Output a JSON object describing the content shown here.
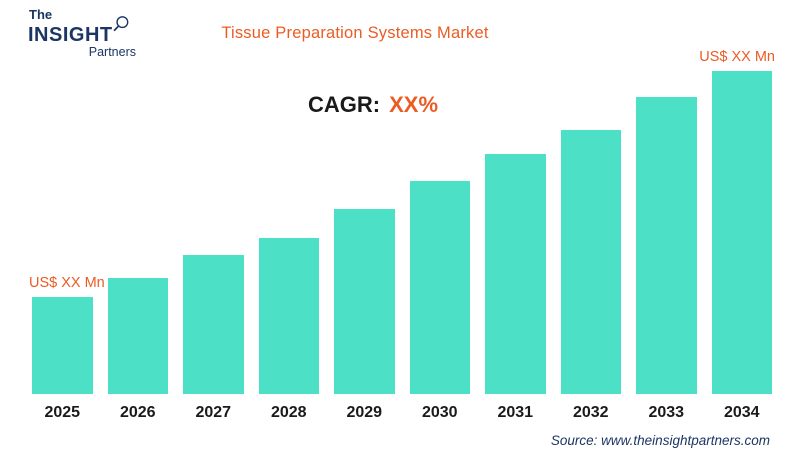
{
  "logo": {
    "line1": "The",
    "line2": "INSIGHT",
    "line3": "Partners",
    "icon": "magnifier-icon"
  },
  "colors": {
    "bar": "#4CE0C6",
    "accent_orange": "#EB5C24",
    "navy": "#1B3664",
    "text_dark": "#1A1A1A"
  },
  "source": "Source: www.theinsightpartners.com",
  "chart_data": {
    "type": "bar",
    "title": "Tissue Preparation Systems Market",
    "categories": [
      "2025",
      "2026",
      "2027",
      "2028",
      "2029",
      "2030",
      "2031",
      "2032",
      "2033",
      "2034"
    ],
    "values": [
      100,
      120,
      143,
      161,
      191,
      219,
      247,
      272,
      306,
      333
    ],
    "unit": "US$ Mn",
    "xlabel": "",
    "ylabel": "",
    "ylim": [
      0,
      340
    ],
    "grid": false,
    "axis_lines": false,
    "legend": "none",
    "cagr_label": "CAGR:",
    "cagr_value": "XX%",
    "value_labels": {
      "first": "US$ XX Mn",
      "last": "US$ XX Mn"
    },
    "bar_color": "#4CE0C6"
  }
}
